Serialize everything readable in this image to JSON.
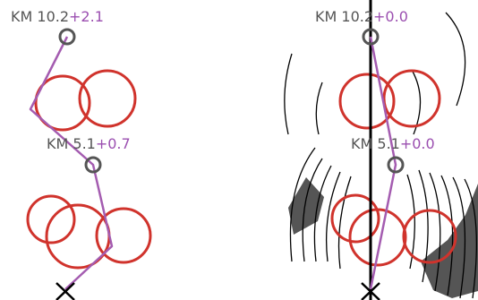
{
  "colors": {
    "background": "#ffffff",
    "route_line": "#a45cb0",
    "circle": "#d0332c",
    "marker": "#555555",
    "label_text": "#555555",
    "offset_text": "#9b4fb0",
    "arc_line": "#000000",
    "shaded_region": "#555555"
  },
  "panels": [
    {
      "name": "left",
      "labels": [
        {
          "km": "KM 10.2",
          "offset": "+2.1"
        },
        {
          "km": "KM 5.1",
          "offset": "+0.7"
        }
      ]
    },
    {
      "name": "right",
      "labels": [
        {
          "km": "KM 10.2",
          "offset": "+0.0"
        },
        {
          "km": "KM 5.1",
          "offset": "+0.0"
        }
      ]
    }
  ],
  "icons": {
    "waypoint": "ring-marker-icon",
    "origin": "cross-marker-icon"
  }
}
